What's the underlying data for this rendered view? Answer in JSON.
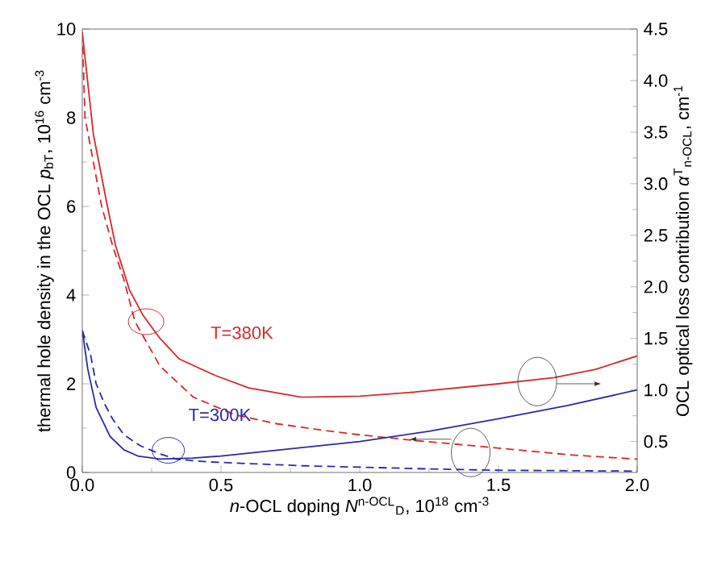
{
  "chart_data": {
    "type": "line",
    "xlabel": "*n*-OCL doping *N*$^{n-OCL}$$_{D}$, 10$^{18}$ cm$^{-3}$",
    "ylabel": "thermal hole density in the OCL *p*$_{bT}$, 10$^{16}$ cm$^{-3}$",
    "y2label": "OCL optical loss contribution *α*$^{T}$$_{n-OCL}$, cm$^{-1}$",
    "xlim": [
      0,
      2
    ],
    "xticks": [
      {
        "value": 0,
        "label": "0.0"
      },
      {
        "value": 0.5,
        "label": "0.5"
      },
      {
        "value": 1,
        "label": "1.0"
      },
      {
        "value": 1.5,
        "label": "1.5"
      },
      {
        "value": 2,
        "label": "2.0"
      }
    ],
    "ylim": [
      0,
      10
    ],
    "yticks": [
      0,
      2,
      4,
      6,
      8,
      10
    ],
    "y2lim": [
      0.2,
      4.5
    ],
    "y2ticks": [
      {
        "value": 0.5,
        "label": "0.5"
      },
      {
        "value": 1,
        "label": "1.0"
      },
      {
        "value": 1.5,
        "label": "1.5"
      },
      {
        "value": 2,
        "label": "2.0"
      },
      {
        "value": 2.5,
        "label": "2.5"
      },
      {
        "value": 3,
        "label": "3.0"
      },
      {
        "value": 3.5,
        "label": "3.5"
      },
      {
        "value": 4,
        "label": "4.0"
      },
      {
        "value": 4.5,
        "label": "4.5"
      }
    ],
    "series": [
      {
        "color": "#d42a2a",
        "line_style": "dashed",
        "x": [
          0,
          0.01,
          0.04,
          0.07,
          0.11,
          0.15,
          0.19,
          0.28,
          0.4,
          0.55,
          0.7,
          0.87,
          1.0,
          1.2,
          1.45,
          1.75,
          2.0
        ],
        "values": [
          9.9,
          8.0,
          7.0,
          6.0,
          5.1,
          4.35,
          3.4,
          2.4,
          1.7,
          1.3,
          1.1,
          0.95,
          0.85,
          0.72,
          0.58,
          0.4,
          0.3
        ]
      },
      {
        "color": "#2a2aa8",
        "line_style": "dashed",
        "x": [
          0,
          0.03,
          0.05,
          0.08,
          0.11,
          0.15,
          0.21,
          0.28,
          0.34,
          0.45,
          0.6,
          0.8,
          1.0,
          1.25,
          1.5,
          1.75,
          2.0
        ],
        "values": [
          3.2,
          2.65,
          2.0,
          1.55,
          1.2,
          0.85,
          0.6,
          0.42,
          0.3,
          0.24,
          0.2,
          0.15,
          0.12,
          0.08,
          0.05,
          0.04,
          0.03
        ]
      },
      {
        "color": "#d42a2a",
        "line_style": "solid",
        "axis": "y2",
        "x": [
          0,
          0.04,
          0.09,
          0.12,
          0.17,
          0.22,
          0.28,
          0.35,
          0.48,
          0.6,
          0.79,
          1.0,
          1.2,
          1.5,
          1.7,
          1.85,
          2.0
        ],
        "values": [
          4.47,
          3.48,
          2.79,
          2.4,
          1.97,
          1.72,
          1.5,
          1.3,
          1.14,
          1.02,
          0.93,
          0.94,
          0.98,
          1.06,
          1.12,
          1.2,
          1.33
        ]
      },
      {
        "color": "#2a2aa8",
        "line_style": "solid",
        "axis": "y2",
        "x": [
          0,
          0.02,
          0.05,
          0.1,
          0.15,
          0.2,
          0.28,
          0.4,
          0.5,
          0.75,
          1.0,
          1.25,
          1.5,
          1.75,
          2.0
        ],
        "values": [
          1.58,
          1.2,
          0.83,
          0.55,
          0.42,
          0.36,
          0.33,
          0.34,
          0.36,
          0.43,
          0.5,
          0.6,
          0.72,
          0.85,
          1.0
        ]
      }
    ],
    "annotations": [
      "T=380K",
      "T=300K"
    ]
  }
}
